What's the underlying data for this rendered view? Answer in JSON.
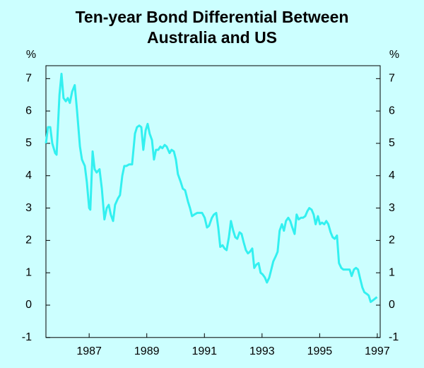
{
  "chart_data": {
    "type": "line",
    "title": [
      "Ten-year Bond Differential Between",
      "Australia and US"
    ],
    "y_label": "%",
    "y2_label": "%",
    "xlim": [
      1986,
      1997.6
    ],
    "xticks": [
      {
        "value": 1987.5,
        "label": "1987"
      },
      {
        "value": 1989.5,
        "label": "1989"
      },
      {
        "value": 1991.5,
        "label": "1991"
      },
      {
        "value": 1993.5,
        "label": "1993"
      },
      {
        "value": 1995.5,
        "label": "1995"
      },
      {
        "value": 1997.5,
        "label": "1997"
      }
    ],
    "ylim": [
      -1,
      7.4
    ],
    "yticks": [
      -1,
      0,
      1,
      2,
      3,
      4,
      5,
      6,
      7
    ],
    "y2lim": [
      -1,
      7.4
    ],
    "y2ticks": [
      -1,
      0,
      1,
      2,
      3,
      4,
      5,
      6,
      7
    ],
    "background": "#ccffff",
    "x": [
      1986.0,
      1986.07,
      1986.15,
      1986.22,
      1986.32,
      1986.37,
      1986.47,
      1986.54,
      1986.61,
      1986.69,
      1986.76,
      1986.83,
      1986.91,
      1987.0,
      1987.08,
      1987.18,
      1987.25,
      1987.35,
      1987.42,
      1987.5,
      1987.54,
      1987.62,
      1987.69,
      1987.76,
      1987.86,
      1987.94,
      1988.03,
      1988.11,
      1988.18,
      1988.25,
      1988.33,
      1988.4,
      1988.5,
      1988.57,
      1988.65,
      1988.72,
      1988.79,
      1988.89,
      1988.99,
      1989.09,
      1989.16,
      1989.24,
      1989.31,
      1989.38,
      1989.46,
      1989.53,
      1989.6,
      1989.68,
      1989.75,
      1989.82,
      1989.9,
      1989.97,
      1990.04,
      1990.12,
      1990.19,
      1990.29,
      1990.36,
      1990.44,
      1990.51,
      1990.58,
      1990.68,
      1990.75,
      1990.83,
      1990.93,
      1991.0,
      1991.07,
      1991.15,
      1991.25,
      1991.32,
      1991.42,
      1991.51,
      1991.59,
      1991.66,
      1991.76,
      1991.83,
      1991.91,
      1991.98,
      1992.05,
      1992.13,
      1992.2,
      1992.27,
      1992.35,
      1992.42,
      1992.5,
      1992.57,
      1992.64,
      1992.72,
      1992.79,
      1992.86,
      1992.94,
      1993.01,
      1993.08,
      1993.16,
      1993.23,
      1993.3,
      1993.38,
      1993.45,
      1993.52,
      1993.6,
      1993.67,
      1993.75,
      1993.82,
      1993.89,
      1993.97,
      1994.04,
      1994.11,
      1994.19,
      1994.26,
      1994.33,
      1994.41,
      1994.48,
      1994.55,
      1994.63,
      1994.7,
      1994.77,
      1994.85,
      1994.92,
      1995.0,
      1995.07,
      1995.14,
      1995.22,
      1995.29,
      1995.36,
      1995.44,
      1995.51,
      1995.58,
      1995.66,
      1995.73,
      1995.8,
      1995.88,
      1995.95,
      1996.02,
      1996.1,
      1996.17,
      1996.25,
      1996.32,
      1996.39,
      1996.47,
      1996.54,
      1996.61,
      1996.69,
      1996.76,
      1996.83,
      1996.91,
      1996.98,
      1997.05,
      1997.13,
      1997.2,
      1997.27,
      1997.35,
      1997.42,
      1997.49
    ],
    "series": [
      {
        "color": "#33f0f0",
        "values": [
          5.0,
          5.5,
          5.5,
          5.0,
          4.7,
          4.65,
          6.5,
          7.15,
          6.4,
          6.3,
          6.4,
          6.25,
          6.6,
          6.8,
          6.0,
          4.9,
          4.5,
          4.3,
          3.8,
          3.0,
          2.95,
          4.75,
          4.2,
          4.1,
          4.2,
          3.6,
          2.65,
          3.0,
          3.1,
          2.8,
          2.6,
          3.1,
          3.3,
          3.4,
          4.0,
          4.3,
          4.3,
          4.35,
          4.35,
          5.3,
          5.5,
          5.55,
          5.5,
          4.8,
          5.4,
          5.6,
          5.3,
          5.1,
          4.5,
          4.8,
          4.8,
          4.9,
          4.85,
          4.95,
          4.9,
          4.7,
          4.8,
          4.75,
          4.5,
          4.05,
          3.8,
          3.6,
          3.55,
          3.2,
          3.0,
          2.75,
          2.8,
          2.85,
          2.85,
          2.85,
          2.7,
          2.4,
          2.45,
          2.7,
          2.8,
          2.85,
          2.4,
          1.8,
          1.85,
          1.75,
          1.7,
          2.1,
          2.6,
          2.3,
          2.1,
          2.05,
          2.25,
          2.2,
          1.95,
          1.7,
          1.6,
          1.65,
          1.75,
          1.15,
          1.25,
          1.3,
          1.0,
          0.95,
          0.85,
          0.7,
          0.85,
          1.1,
          1.35,
          1.5,
          1.65,
          2.3,
          2.5,
          2.3,
          2.6,
          2.7,
          2.6,
          2.4,
          2.2,
          2.8,
          2.65,
          2.7,
          2.7,
          2.75,
          2.9,
          3.0,
          2.95,
          2.8,
          2.5,
          2.75,
          2.5,
          2.55,
          2.5,
          2.6,
          2.5,
          2.25,
          2.1,
          2.05,
          2.15,
          1.3,
          1.15,
          1.1,
          1.1,
          1.1,
          1.1,
          0.9,
          1.1,
          1.15,
          1.1,
          0.8,
          0.55,
          0.4,
          0.35,
          0.3,
          0.1,
          0.15,
          0.2,
          0.25
        ]
      }
    ]
  }
}
